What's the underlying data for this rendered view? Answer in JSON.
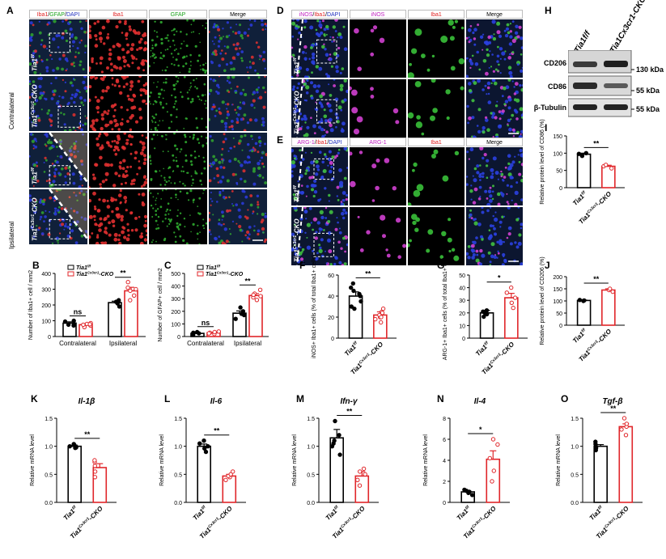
{
  "panels": {
    "A": {
      "label": "A",
      "columns": [
        "Iba1/GFAP/DAPI",
        "Iba1",
        "GFAP",
        "Merge"
      ],
      "col_parts": [
        "Iba1",
        "/",
        "GFAP",
        "/",
        "DAPI"
      ],
      "rows": [
        "Tia1f/f",
        "Tia1Cx3cr1-CKO",
        "Tia1f/f",
        "Tia1Cx3cr1-CKO"
      ],
      "side_labels": [
        "Contralateral",
        "Ipsilateral"
      ]
    },
    "D": {
      "label": "D",
      "columns": [
        "iNOS/Iba1/DAPI",
        "iNOS",
        "Iba1",
        "Merge"
      ],
      "col_parts": [
        "iNOS",
        "/",
        "Iba1",
        "/",
        "DAPI"
      ],
      "rows": [
        "Tia1f/f",
        "Tia1Cx3cr1-CKO"
      ]
    },
    "E": {
      "label": "E",
      "columns": [
        "ARG-1/Iba1/DAPI",
        "ARG-1",
        "Iba1",
        "Merge"
      ],
      "col_parts": [
        "ARG-1",
        "/",
        "Iba1",
        "/",
        "DAPI"
      ],
      "rows": [
        "Tia1f/f",
        "Tia1Cx3cr1-CKO"
      ]
    },
    "H": {
      "label": "H",
      "lanes": [
        "Tia1f/f",
        "Tia1Cx3cr1-CKO"
      ],
      "bands": [
        "CD206",
        "CD86",
        "β-Tubulin"
      ],
      "sizes": [
        "130 kDa",
        "55 kDa",
        "55 kDa"
      ]
    }
  },
  "legend": {
    "ff": "Tia1f/f",
    "cko": "Tia1Cx3cr1-CKO"
  },
  "colors": {
    "ff": "#000000",
    "cko": "#e0262a"
  },
  "chart_data": [
    {
      "id": "B",
      "label": "B",
      "type": "bar",
      "categories": [
        "Contralateral",
        "Ipsilateral"
      ],
      "series": [
        {
          "name": "Tia1f/f",
          "values": [
            85,
            215
          ]
        },
        {
          "name": "Tia1Cx3cr1-CKO",
          "values": [
            75,
            290
          ]
        }
      ],
      "points": [
        [
          [
            70,
            80,
            95,
            75,
            100
          ],
          [
            60,
            70,
            80,
            85,
            75,
            78
          ]
        ],
        [
          [
            190,
            210,
            230,
            220,
            225
          ],
          [
            230,
            260,
            290,
            310,
            345,
            300
          ]
        ]
      ],
      "errors": [
        [
          8,
          6
        ],
        [
          9,
          22
        ]
      ],
      "sig": [
        "ns",
        "**"
      ],
      "ylabel": "Number of Iba1+ cell / mm2",
      "ylim": [
        0,
        400
      ],
      "yticks": [
        0,
        100,
        200,
        300,
        400
      ]
    },
    {
      "id": "C",
      "label": "C",
      "type": "bar",
      "categories": [
        "Contralateral",
        "Ipsilateral"
      ],
      "series": [
        {
          "name": "Tia1f/f",
          "values": [
            25,
            185
          ]
        },
        {
          "name": "Tia1Cx3cr1-CKO",
          "values": [
            30,
            325
          ]
        }
      ],
      "points": [
        [
          [
            15,
            30,
            20,
            35,
            25
          ],
          [
            20,
            30,
            35,
            25,
            40
          ]
        ],
        [
          [
            140,
            170,
            200,
            180,
            230
          ],
          [
            290,
            320,
            340,
            310,
            370,
            330
          ]
        ]
      ],
      "errors": [
        [
          4,
          4
        ],
        [
          18,
          15
        ]
      ],
      "sig": [
        "ns",
        "**"
      ],
      "ylabel": "Number of GFAP+ cell / mm2",
      "ylim": [
        0,
        500
      ],
      "yticks": [
        0,
        100,
        200,
        300,
        400,
        500
      ]
    },
    {
      "id": "F",
      "label": "F",
      "type": "bar",
      "categories": [
        "Tia1f/f",
        "Tia1Cx3cr1-CKO"
      ],
      "values": [
        40,
        22
      ],
      "points": [
        [
          30,
          35,
          40,
          42,
          45,
          48,
          52,
          28
        ],
        [
          15,
          18,
          20,
          22,
          25,
          28,
          20,
          24
        ]
      ],
      "errors": [
        4,
        3
      ],
      "sig": "**",
      "ylabel": "iNOS+ Iba1+ cells (% of total Iba1+ cells)",
      "ylim": [
        0,
        60
      ],
      "yticks": [
        0,
        20,
        40,
        60
      ]
    },
    {
      "id": "G",
      "label": "G",
      "type": "bar",
      "categories": [
        "Tia1f/f",
        "Tia1Cx3cr1-CKO"
      ],
      "values": [
        20,
        32
      ],
      "points": [
        [
          17,
          19,
          20,
          22,
          21
        ],
        [
          24,
          28,
          32,
          36,
          40
        ]
      ],
      "errors": [
        2,
        3.5
      ],
      "sig": "*",
      "ylabel": "ARG-1+ Iba1+ cells (% of total Iba1+ cells)",
      "ylim": [
        0,
        50
      ],
      "yticks": [
        0,
        10,
        20,
        30,
        40,
        50
      ]
    },
    {
      "id": "I",
      "label": "I",
      "type": "bar",
      "categories": [
        "Tia1f/f",
        "Tia1Cx3cr1-CKO"
      ],
      "values": [
        97,
        62
      ],
      "points": [
        [
          92,
          98,
          100
        ],
        [
          56,
          62,
          66
        ]
      ],
      "errors": [
        3,
        3
      ],
      "sig": "**",
      "ylabel": "Relative protein level of CD86 (%)",
      "ylim": [
        0,
        150
      ],
      "yticks": [
        0,
        50,
        100,
        150
      ]
    },
    {
      "id": "J",
      "label": "J",
      "type": "bar",
      "categories": [
        "Tia1f/f",
        "Tia1Cx3cr1-CKO"
      ],
      "values": [
        102,
        145
      ],
      "points": [
        [
          100,
          102,
          104
        ],
        [
          138,
          145,
          150
        ]
      ],
      "errors": [
        1.5,
        5
      ],
      "sig": "**",
      "ylabel": "Relative protein level of CD206 (%)",
      "ylim": [
        0,
        200
      ],
      "yticks": [
        0,
        50,
        100,
        150,
        200
      ]
    },
    {
      "id": "K",
      "label": "K",
      "type": "bar",
      "title": "Il-1β",
      "categories": [
        "Tia1f/f",
        "Tia1Cx3cr1-CKO"
      ],
      "values": [
        1.0,
        0.62
      ],
      "points": [
        [
          0.97,
          1.0,
          1.02,
          1.04,
          0.98
        ],
        [
          0.45,
          0.55,
          0.65,
          0.72,
          0.75
        ]
      ],
      "errors": [
        0.02,
        0.07
      ],
      "sig": "**",
      "ylabel": "Relative mRNA level",
      "ylim": [
        0,
        1.5
      ],
      "yticks": [
        0.0,
        0.5,
        1.0,
        1.5
      ]
    },
    {
      "id": "L",
      "label": "L",
      "type": "bar",
      "title": "Il-6",
      "categories": [
        "Tia1f/f",
        "Tia1Cx3cr1-CKO"
      ],
      "values": [
        1.0,
        0.47
      ],
      "points": [
        [
          0.9,
          0.96,
          1.0,
          1.05,
          1.1
        ],
        [
          0.4,
          0.45,
          0.47,
          0.5,
          0.55
        ]
      ],
      "errors": [
        0.04,
        0.03
      ],
      "sig": "**",
      "ylabel": "Relative mRNA level",
      "ylim": [
        0,
        1.5
      ],
      "yticks": [
        0.0,
        0.5,
        1.0,
        1.5
      ]
    },
    {
      "id": "M",
      "label": "M",
      "type": "bar",
      "title": "Ifn-γ",
      "categories": [
        "Tia1f/f",
        "Tia1Cx3cr1-CKO"
      ],
      "values": [
        1.15,
        0.47
      ],
      "points": [
        [
          0.85,
          1.0,
          1.1,
          1.2,
          1.45,
          1.05
        ],
        [
          0.3,
          0.4,
          0.5,
          0.55,
          0.6
        ]
      ],
      "errors": [
        0.15,
        0.08
      ],
      "sig": "**",
      "ylabel": "Relative mRNA level",
      "ylim": [
        0,
        1.5
      ],
      "yticks": [
        0.0,
        0.5,
        1.0,
        1.5
      ]
    },
    {
      "id": "N",
      "label": "N",
      "type": "bar",
      "title": "Il-4",
      "categories": [
        "Tia1f/f",
        "Tia1Cx3cr1-CKO"
      ],
      "values": [
        1.0,
        4.1
      ],
      "points": [
        [
          0.7,
          0.9,
          1.0,
          1.1,
          1.2
        ],
        [
          2.0,
          3.0,
          4.2,
          5.5,
          6.0
        ]
      ],
      "errors": [
        0.1,
        0.8
      ],
      "sig": "*",
      "ylabel": "Relative mRNA level",
      "ylim": [
        0,
        8
      ],
      "yticks": [
        0,
        2,
        4,
        6,
        8
      ]
    },
    {
      "id": "O",
      "label": "O",
      "type": "bar",
      "title": "Tgf-β",
      "categories": [
        "Tia1f/f",
        "Tia1Cx3cr1-CKO"
      ],
      "values": [
        1.0,
        1.35
      ],
      "points": [
        [
          0.93,
          0.97,
          1.0,
          1.04,
          1.08
        ],
        [
          1.2,
          1.3,
          1.35,
          1.4,
          1.5
        ]
      ],
      "errors": [
        0.03,
        0.05
      ],
      "sig": "**",
      "ylabel": "Relative mRNA level",
      "ylim": [
        0,
        1.5
      ],
      "yticks": [
        0.0,
        0.5,
        1.0,
        1.5
      ]
    }
  ]
}
